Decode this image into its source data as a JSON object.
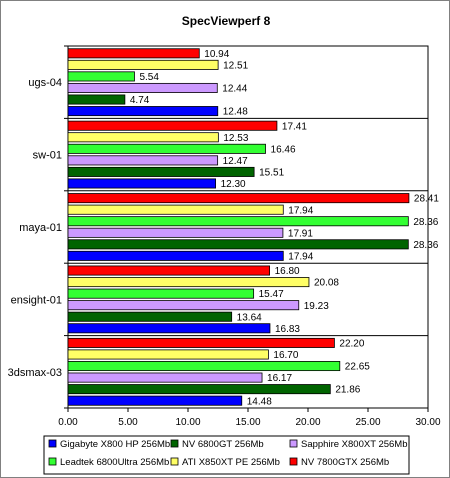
{
  "chart_data": {
    "type": "bar",
    "orientation": "horizontal",
    "title": "SpecViewperf 8",
    "xlabel": "",
    "ylabel": "",
    "xlim": [
      0,
      30
    ],
    "x_ticks": [
      "0.00",
      "5.00",
      "10.00",
      "15.00",
      "20.00",
      "25.00",
      "30.00"
    ],
    "grid": "off",
    "legend_position": "bottom",
    "categories": [
      "ugs-04",
      "sw-01",
      "maya-01",
      "ensight-01",
      "3dsmax-03"
    ],
    "series": [
      {
        "name": "Gigabyte X800 HP 256Mb",
        "color": "#0000ff",
        "values": [
          12.48,
          12.3,
          17.94,
          16.83,
          14.48
        ],
        "labels": [
          "12.48",
          "12.30",
          "17.94",
          "16.83",
          "14.48"
        ]
      },
      {
        "name": "NV 6800GT 256Mb",
        "color": "#006400",
        "values": [
          4.74,
          15.51,
          28.36,
          13.64,
          21.86
        ],
        "labels": [
          "4.74",
          "15.51",
          "28.36",
          "13.64",
          "21.86"
        ]
      },
      {
        "name": "Sapphire X800XT 256Mb",
        "color": "#cc99ff",
        "values": [
          12.44,
          12.47,
          17.91,
          19.23,
          16.17
        ],
        "labels": [
          "12.44",
          "12.47",
          "17.91",
          "19.23",
          "16.17"
        ]
      },
      {
        "name": "Leadtek 6800Ultra 256Mb",
        "color": "#33ff33",
        "values": [
          5.54,
          16.46,
          28.36,
          15.47,
          22.65
        ],
        "labels": [
          "5.54",
          "16.46",
          "28.36",
          "15.47",
          "22.65"
        ]
      },
      {
        "name": "ATI X850XT PE 256Mb",
        "color": "#ffff66",
        "values": [
          12.51,
          12.53,
          17.94,
          20.08,
          16.7
        ],
        "labels": [
          "12.51",
          "12.53",
          "17.94",
          "20.08",
          "16.70"
        ]
      },
      {
        "name": "NV 7800GTX 256Mb",
        "color": "#ff0000",
        "values": [
          10.94,
          17.41,
          28.41,
          16.8,
          22.2
        ],
        "labels": [
          "10.94",
          "17.41",
          "28.41",
          "16.80",
          "22.20"
        ]
      }
    ]
  }
}
